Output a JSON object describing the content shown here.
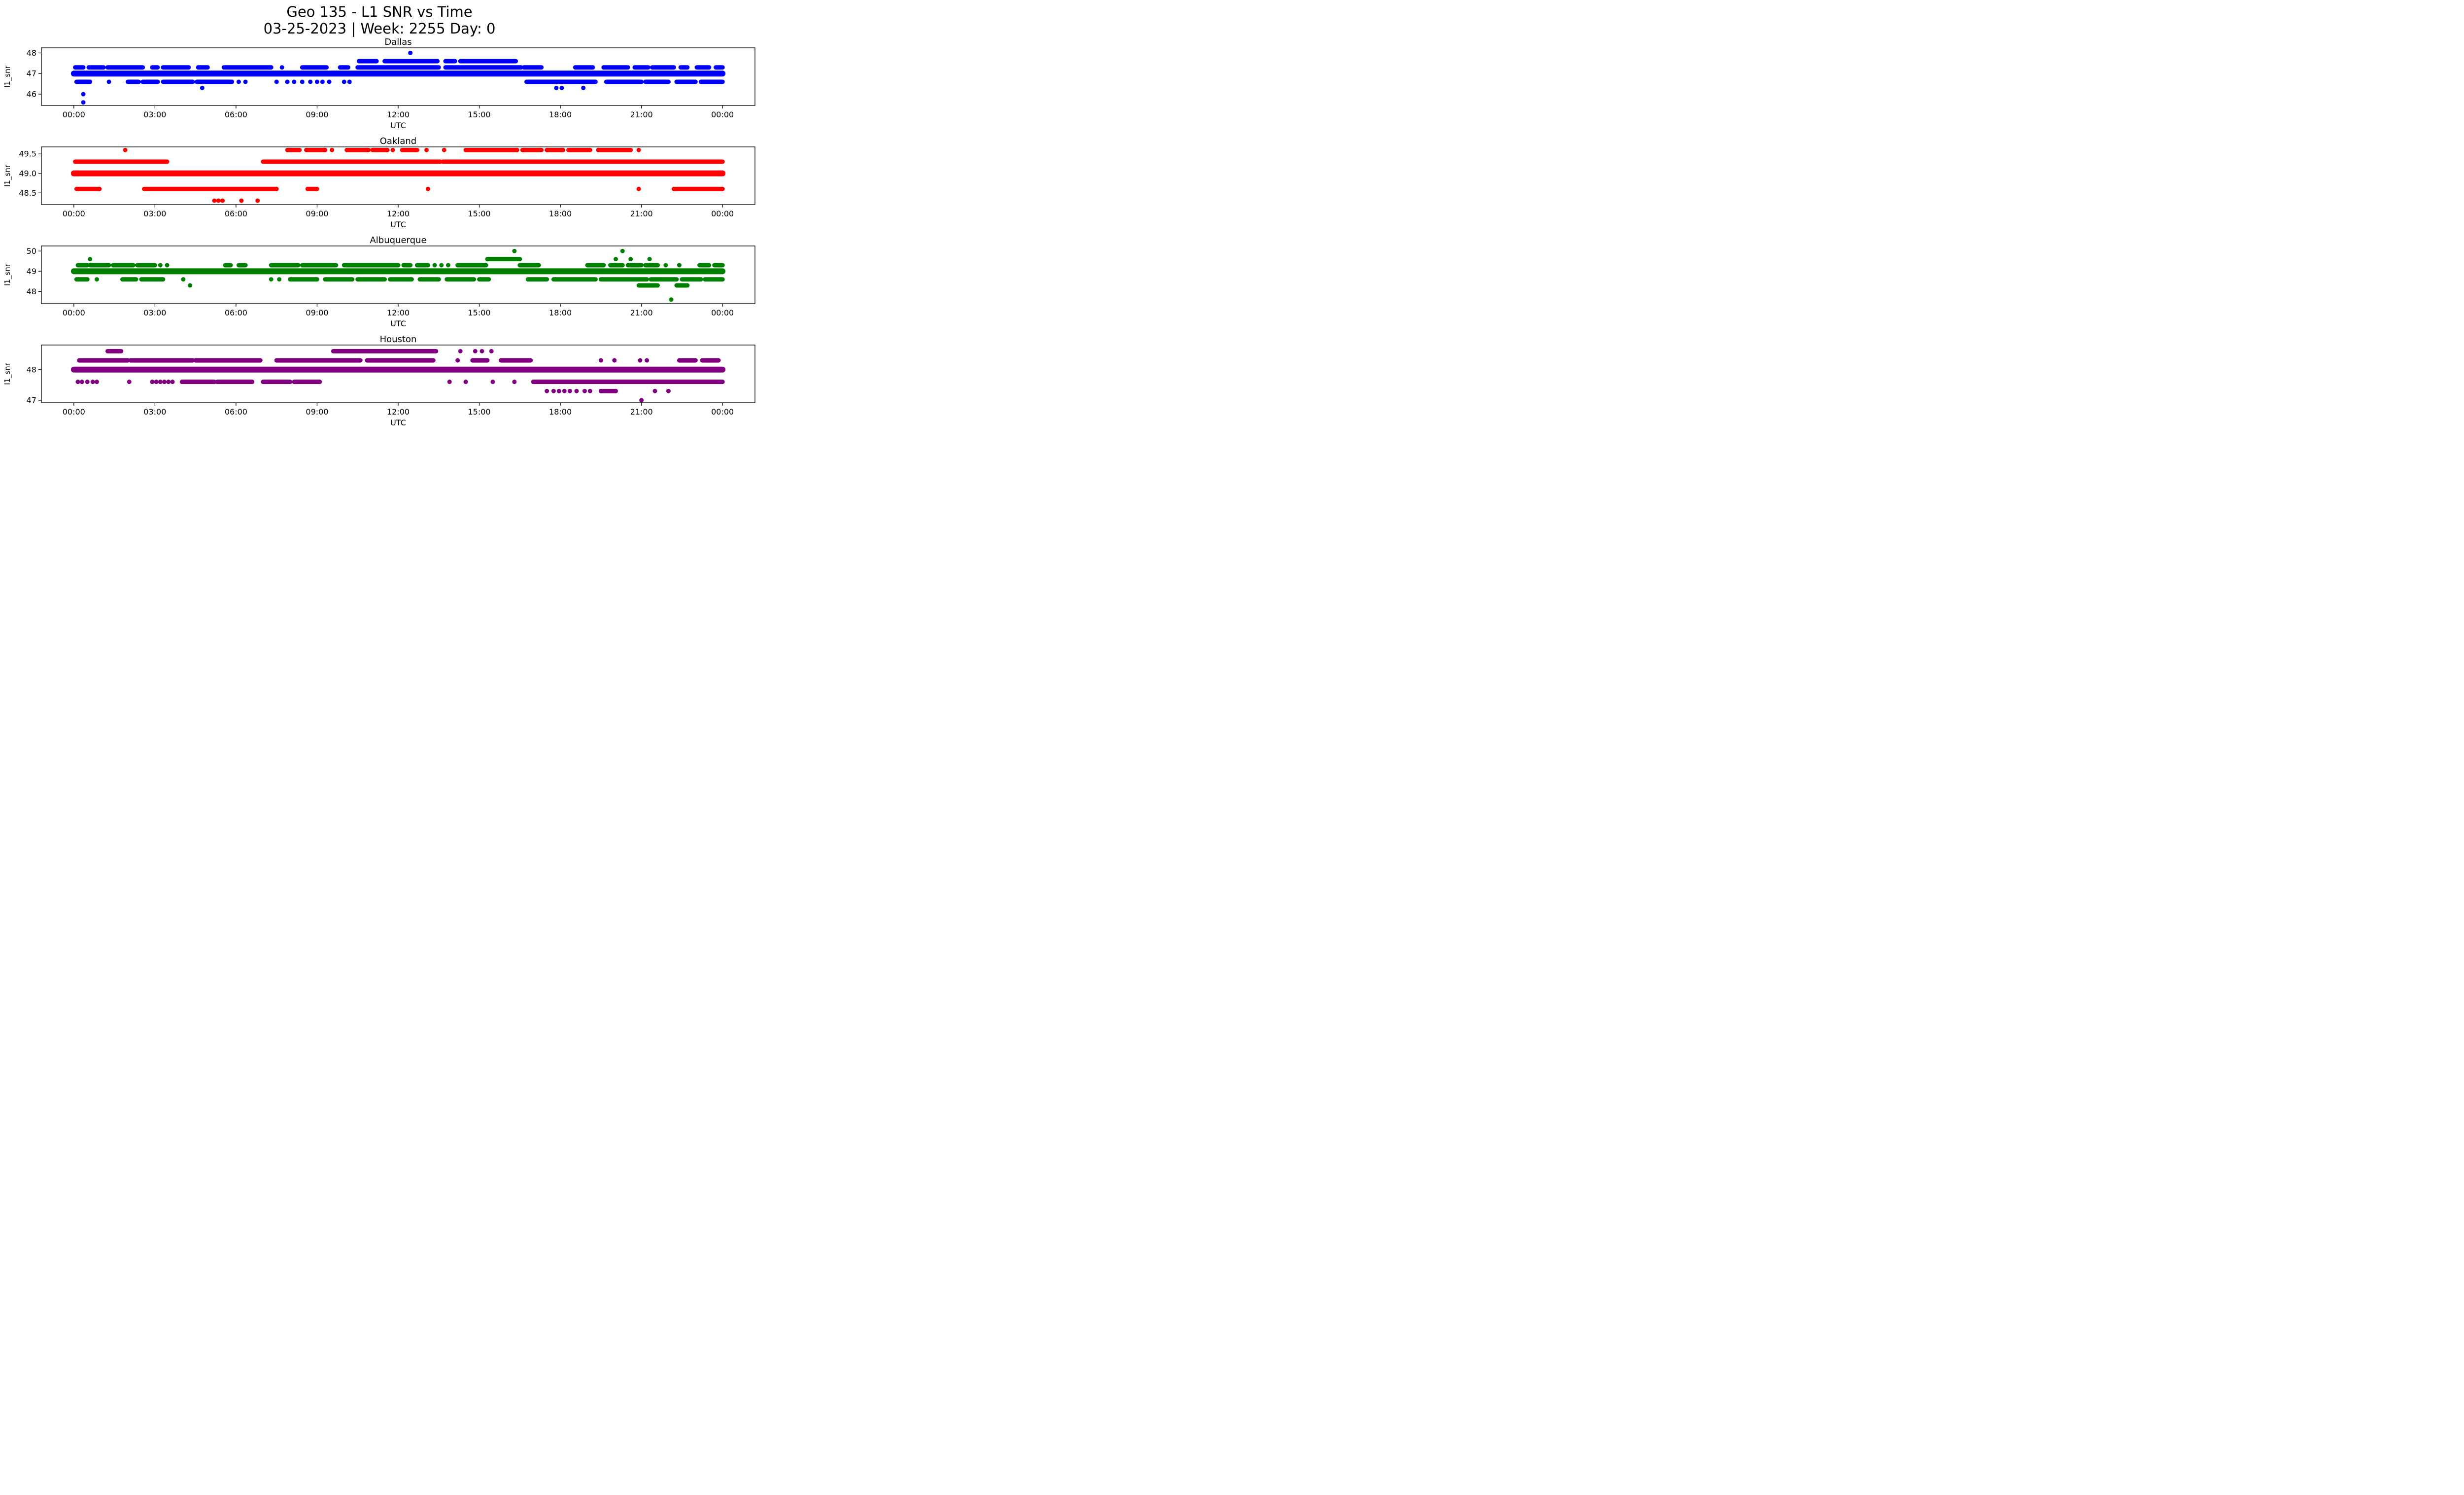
{
  "title": "Geo 135 - L1 SNR vs Time",
  "subtitle": "03-25-2023 | Week: 2255 Day: 0",
  "chart_data": [
    {
      "type": "scatter",
      "title": "Dallas",
      "color": "#0000FF",
      "xlabel": "UTC",
      "ylabel": "l1_snr",
      "x_tick_hours": [
        0,
        3,
        6,
        9,
        12,
        15,
        18,
        21,
        24
      ],
      "x_tick_labels": [
        "00:00",
        "03:00",
        "06:00",
        "09:00",
        "12:00",
        "15:00",
        "18:00",
        "21:00",
        "00:00"
      ],
      "xlim_hours": [
        -1.2,
        25.2
      ],
      "y_tick_values": [
        46,
        47,
        48
      ],
      "y_tick_labels": [
        "46",
        "47",
        "48"
      ],
      "ylim": [
        45.45,
        48.25
      ],
      "bands": [
        {
          "snr": 48.0,
          "segments": [],
          "points": [
            12.45
          ]
        },
        {
          "snr": 47.6,
          "segments": [
            [
              10.55,
              11.2
            ],
            [
              11.5,
              13.45
            ],
            [
              13.75,
              14.1
            ],
            [
              14.3,
              16.35
            ]
          ],
          "points": []
        },
        {
          "snr": 47.3,
          "segments": [
            [
              0.05,
              0.35
            ],
            [
              0.55,
              1.1
            ],
            [
              1.25,
              2.55
            ],
            [
              2.9,
              3.1
            ],
            [
              3.3,
              4.25
            ],
            [
              4.6,
              4.95
            ],
            [
              5.55,
              7.3
            ],
            [
              8.45,
              9.35
            ],
            [
              9.85,
              10.15
            ],
            [
              10.5,
              13.5
            ],
            [
              13.75,
              16.55
            ],
            [
              16.65,
              17.3
            ],
            [
              18.55,
              19.2
            ],
            [
              19.6,
              20.5
            ],
            [
              20.75,
              21.25
            ],
            [
              21.4,
              22.2
            ],
            [
              22.45,
              22.7
            ],
            [
              23.05,
              23.5
            ],
            [
              23.75,
              24.0
            ]
          ],
          "points": [
            7.7
          ]
        },
        {
          "snr": 47.0,
          "thick": true,
          "segments": [
            [
              0.0,
              24.0
            ]
          ],
          "points": []
        },
        {
          "snr": 46.6,
          "segments": [
            [
              0.1,
              0.6
            ],
            [
              2.0,
              2.4
            ],
            [
              2.55,
              3.1
            ],
            [
              3.3,
              4.4
            ],
            [
              4.55,
              5.85
            ],
            [
              16.75,
              19.3
            ],
            [
              19.7,
              21.0
            ],
            [
              21.15,
              22.0
            ],
            [
              22.3,
              23.0
            ],
            [
              23.2,
              24.0
            ]
          ],
          "points": [
            1.3,
            6.1,
            6.35,
            7.5,
            7.9,
            8.15,
            8.45,
            8.75,
            9.0,
            9.2,
            9.45,
            10.0,
            10.2
          ]
        },
        {
          "snr": 46.3,
          "segments": [],
          "points": [
            4.75,
            17.85,
            18.05,
            18.85
          ]
        },
        {
          "snr": 46.0,
          "segments": [],
          "points": [
            0.35
          ]
        },
        {
          "snr": 45.6,
          "segments": [],
          "points": [
            0.35
          ]
        }
      ]
    },
    {
      "type": "scatter",
      "title": "Oakland",
      "color": "#FF0000",
      "xlabel": "UTC",
      "ylabel": "l1_snr",
      "x_tick_hours": [
        0,
        3,
        6,
        9,
        12,
        15,
        18,
        21,
        24
      ],
      "x_tick_labels": [
        "00:00",
        "03:00",
        "06:00",
        "09:00",
        "12:00",
        "15:00",
        "18:00",
        "21:00",
        "00:00"
      ],
      "xlim_hours": [
        -1.2,
        25.2
      ],
      "y_tick_values": [
        48.5,
        49.0,
        49.5
      ],
      "y_tick_labels": [
        "48.5",
        "49.0",
        "49.5"
      ],
      "ylim": [
        48.2,
        49.68
      ],
      "bands": [
        {
          "snr": 49.6,
          "segments": [
            [
              7.9,
              8.35
            ],
            [
              8.6,
              9.3
            ],
            [
              10.1,
              10.9
            ],
            [
              11.05,
              11.6
            ],
            [
              12.15,
              12.7
            ],
            [
              14.5,
              16.4
            ],
            [
              16.6,
              17.3
            ],
            [
              17.5,
              18.1
            ],
            [
              18.3,
              19.1
            ],
            [
              19.4,
              20.6
            ]
          ],
          "points": [
            1.9,
            9.55,
            11.8,
            13.05,
            13.7,
            20.9
          ]
        },
        {
          "snr": 49.3,
          "segments": [
            [
              0.05,
              3.45
            ],
            [
              7.0,
              13.55
            ],
            [
              13.65,
              24.0
            ]
          ],
          "points": []
        },
        {
          "snr": 49.0,
          "thick": true,
          "segments": [
            [
              0.0,
              24.0
            ]
          ],
          "points": []
        },
        {
          "snr": 48.6,
          "segments": [
            [
              0.1,
              0.95
            ],
            [
              2.6,
              7.5
            ],
            [
              8.65,
              9.0
            ],
            [
              22.2,
              24.0
            ]
          ],
          "points": [
            13.1,
            20.9
          ]
        },
        {
          "snr": 48.3,
          "segments": [],
          "points": [
            5.2,
            5.35,
            5.5,
            6.2,
            6.8
          ]
        }
      ]
    },
    {
      "type": "scatter",
      "title": "Albuquerque",
      "color": "#008000",
      "xlabel": "UTC",
      "ylabel": "l1_snr",
      "x_tick_hours": [
        0,
        3,
        6,
        9,
        12,
        15,
        18,
        21,
        24
      ],
      "x_tick_labels": [
        "00:00",
        "03:00",
        "06:00",
        "09:00",
        "12:00",
        "15:00",
        "18:00",
        "21:00",
        "00:00"
      ],
      "xlim_hours": [
        -1.2,
        25.2
      ],
      "y_tick_values": [
        48,
        49,
        50
      ],
      "y_tick_labels": [
        "48",
        "49",
        "50"
      ],
      "ylim": [
        47.4,
        50.25
      ],
      "bands": [
        {
          "snr": 50.0,
          "segments": [],
          "points": [
            16.3,
            20.3
          ]
        },
        {
          "snr": 49.6,
          "segments": [
            [
              15.3,
              16.5
            ]
          ],
          "points": [
            0.6,
            20.05,
            20.6,
            21.3
          ]
        },
        {
          "snr": 49.3,
          "segments": [
            [
              0.15,
              0.5
            ],
            [
              0.6,
              1.3
            ],
            [
              1.45,
              2.2
            ],
            [
              2.35,
              3.0
            ],
            [
              5.6,
              5.8
            ],
            [
              6.1,
              6.35
            ],
            [
              7.3,
              8.3
            ],
            [
              8.45,
              9.7
            ],
            [
              10.0,
              12.0
            ],
            [
              12.2,
              12.45
            ],
            [
              12.7,
              13.1
            ],
            [
              14.2,
              15.25
            ],
            [
              16.5,
              17.2
            ],
            [
              19.0,
              19.6
            ],
            [
              19.85,
              20.3
            ],
            [
              20.5,
              21.0
            ],
            [
              21.15,
              21.6
            ],
            [
              23.15,
              23.5
            ],
            [
              23.7,
              24.0
            ]
          ],
          "points": [
            3.2,
            3.45,
            13.35,
            13.6,
            13.85,
            21.9,
            22.4
          ]
        },
        {
          "snr": 49.0,
          "thick": true,
          "segments": [
            [
              0.0,
              24.0
            ]
          ],
          "points": []
        },
        {
          "snr": 48.6,
          "segments": [
            [
              0.1,
              0.5
            ],
            [
              1.8,
              2.3
            ],
            [
              2.5,
              3.3
            ],
            [
              8.0,
              9.0
            ],
            [
              9.3,
              10.3
            ],
            [
              10.5,
              11.5
            ],
            [
              11.7,
              12.5
            ],
            [
              12.8,
              13.5
            ],
            [
              13.8,
              14.8
            ],
            [
              15.0,
              15.35
            ],
            [
              16.8,
              17.5
            ],
            [
              17.75,
              19.3
            ],
            [
              19.5,
              21.2
            ],
            [
              21.35,
              22.3
            ],
            [
              22.5,
              23.2
            ],
            [
              23.35,
              24.0
            ]
          ],
          "points": [
            0.85,
            4.05,
            7.3,
            7.6
          ]
        },
        {
          "snr": 48.3,
          "segments": [
            [
              20.9,
              21.6
            ],
            [
              22.3,
              22.7
            ]
          ],
          "points": [
            4.3
          ]
        },
        {
          "snr": 47.6,
          "segments": [],
          "points": [
            22.1
          ]
        }
      ]
    },
    {
      "type": "scatter",
      "title": "Houston",
      "color": "#800080",
      "xlabel": "UTC",
      "ylabel": "l1_snr",
      "x_tick_hours": [
        0,
        3,
        6,
        9,
        12,
        15,
        18,
        21,
        24
      ],
      "x_tick_labels": [
        "00:00",
        "03:00",
        "06:00",
        "09:00",
        "12:00",
        "15:00",
        "18:00",
        "21:00",
        "00:00"
      ],
      "xlim_hours": [
        -1.2,
        25.2
      ],
      "y_tick_values": [
        47,
        48
      ],
      "y_tick_labels": [
        "47",
        "48"
      ],
      "ylim": [
        46.92,
        48.8
      ],
      "bands": [
        {
          "snr": 48.6,
          "segments": [
            [
              1.25,
              1.75
            ],
            [
              9.6,
              13.4
            ]
          ],
          "points": [
            14.3,
            14.85,
            15.1,
            15.45
          ]
        },
        {
          "snr": 48.3,
          "segments": [
            [
              0.2,
              2.0
            ],
            [
              2.1,
              4.4
            ],
            [
              4.5,
              6.9
            ],
            [
              7.5,
              10.6
            ],
            [
              10.85,
              13.3
            ],
            [
              14.75,
              15.3
            ],
            [
              15.8,
              16.9
            ],
            [
              22.4,
              23.0
            ],
            [
              23.25,
              23.85
            ]
          ],
          "points": [
            14.2,
            19.5,
            20.0,
            20.95,
            21.2
          ]
        },
        {
          "snr": 48.0,
          "thick": true,
          "segments": [
            [
              0.0,
              24.0
            ]
          ],
          "points": []
        },
        {
          "snr": 47.6,
          "segments": [
            [
              4.0,
              5.2
            ],
            [
              5.3,
              6.6
            ],
            [
              7.0,
              8.0
            ],
            [
              8.15,
              9.1
            ],
            [
              17.0,
              24.0
            ]
          ],
          "points": [
            0.15,
            0.3,
            0.5,
            0.7,
            0.85,
            2.05,
            2.9,
            3.05,
            3.2,
            3.35,
            3.5,
            3.65,
            13.9,
            14.5,
            15.5,
            16.3
          ]
        },
        {
          "snr": 47.3,
          "segments": [
            [
              19.5,
              20.05
            ]
          ],
          "points": [
            17.5,
            17.75,
            17.95,
            18.15,
            18.35,
            18.6,
            18.9,
            19.1,
            21.5,
            22.0
          ]
        },
        {
          "snr": 47.0,
          "segments": [],
          "points": [
            21.0
          ]
        }
      ]
    }
  ]
}
